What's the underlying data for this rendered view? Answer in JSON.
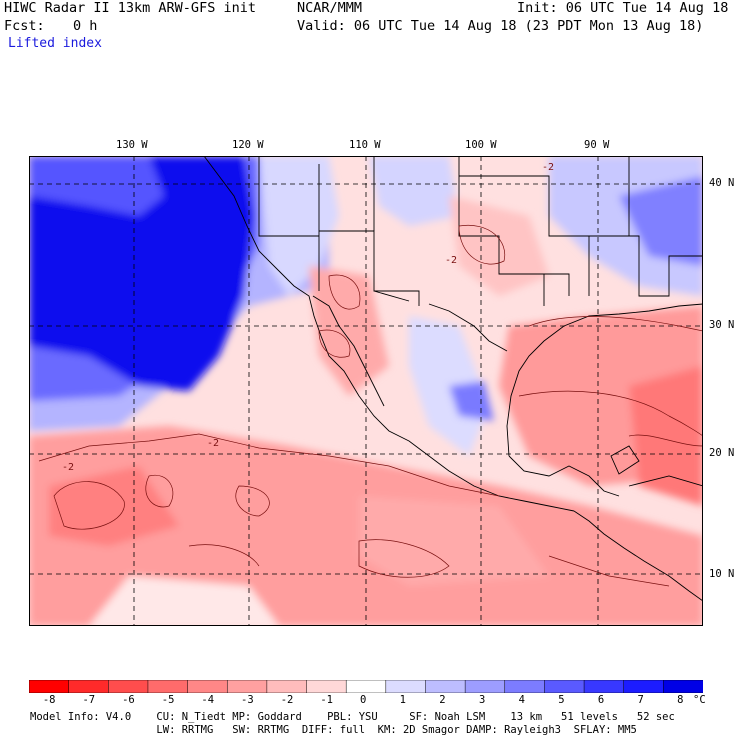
{
  "header": {
    "title": "HIWC Radar II 13km ARW-GFS init",
    "source": "NCAR/MMM",
    "init": "Init: 06 UTC Tue 14 Aug 18",
    "fcst_label": "Fcst:",
    "fcst_value": "0 h",
    "valid": "Valid: 06 UTC Tue 14 Aug 18 (23 PDT Mon 13 Aug 18)",
    "field": "Lifted index"
  },
  "map": {
    "lon_labels": [
      "130 W",
      "120 W",
      "110 W",
      "100 W",
      "90 W"
    ],
    "lat_labels": [
      "40 N",
      "30 N",
      "20 N",
      "10 N"
    ],
    "contour_label": "-2"
  },
  "colorbar": {
    "ticks": [
      "-8",
      "-7",
      "-6",
      "-5",
      "-4",
      "-3",
      "-2",
      "-1",
      "0",
      "1",
      "2",
      "3",
      "4",
      "5",
      "6",
      "7",
      "8"
    ],
    "unit": "°C",
    "colors": [
      "#ff0000",
      "#ff2a2a",
      "#ff4d4d",
      "#ff6b6b",
      "#ff8787",
      "#ffa0a0",
      "#ffbcbc",
      "#ffd8d8",
      "#ffffff",
      "#dcdcff",
      "#bdbdff",
      "#9d9dff",
      "#7c7cff",
      "#5a5aff",
      "#3838ff",
      "#1c1cff",
      "#0000e6"
    ]
  },
  "footer": {
    "line1": "Model Info: V4.0    CU: N_Tiedt MP: Goddard    PBL: YSU     SF: Noah LSM    13 km   51 levels   52 sec",
    "line2": "                    LW: RRTMG   SW: RRTMG  DIFF: full  KM: 2D Smagor DAMP: Rayleigh3  SFLAY: MM5"
  }
}
